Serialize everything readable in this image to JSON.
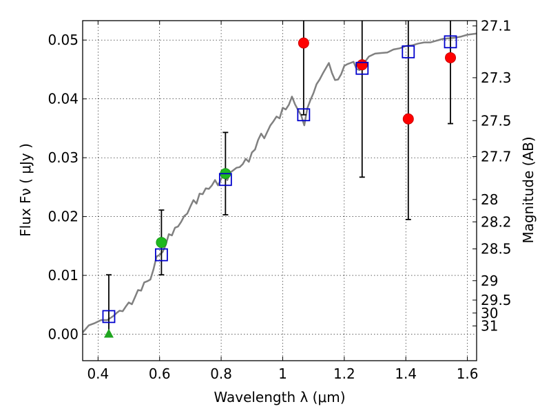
{
  "chart_data": {
    "type": "scatter",
    "xlabel": "Wavelength  λ (μm)",
    "ylabel": "Flux  Fν  ( μJy )",
    "y2label": "Magnitude (AB)",
    "xlim": [
      0.35,
      1.63
    ],
    "ylim": [
      -0.0045,
      0.0533
    ],
    "x_ticks": [
      0.4,
      0.6,
      0.8,
      1.0,
      1.2,
      1.4,
      1.6
    ],
    "x_tick_labels": [
      "0.4",
      "0.6",
      "0.8",
      "1",
      "1.2",
      "1.4",
      "1.6"
    ],
    "y_ticks": [
      0.0,
      0.01,
      0.02,
      0.03,
      0.04,
      0.05
    ],
    "y_tick_labels": [
      "0.00",
      "0.01",
      "0.02",
      "0.03",
      "0.04",
      "0.05"
    ],
    "y2_ticks": [
      {
        "label": "27.1",
        "flux": 0.0524
      },
      {
        "label": "27.3",
        "flux": 0.0436
      },
      {
        "label": "27.5",
        "flux": 0.0363
      },
      {
        "label": "27.7",
        "flux": 0.0302
      },
      {
        "label": "28",
        "flux": 0.0229
      },
      {
        "label": "28.2",
        "flux": 0.0191
      },
      {
        "label": "28.5",
        "flux": 0.0145
      },
      {
        "label": "29",
        "flux": 0.0091
      },
      {
        "label": "29.5",
        "flux": 0.0058
      },
      {
        "label": "30",
        "flux": 0.0036
      },
      {
        "label": "31",
        "flux": 0.0014
      }
    ],
    "grid": true,
    "colors": {
      "model": "#808080",
      "observed": "#ff0000",
      "detected": "#1fb81f",
      "upper_limit": "#1fa51f",
      "model_box": "#0000cc",
      "errorbar": "#000000"
    },
    "model_spectrum": {
      "name": "model SED",
      "x": [
        0.35,
        0.37,
        0.39,
        0.41,
        0.43,
        0.45,
        0.46,
        0.47,
        0.48,
        0.49,
        0.5,
        0.51,
        0.52,
        0.53,
        0.54,
        0.55,
        0.56,
        0.57,
        0.58,
        0.59,
        0.6,
        0.61,
        0.62,
        0.63,
        0.64,
        0.65,
        0.66,
        0.67,
        0.68,
        0.69,
        0.7,
        0.71,
        0.72,
        0.73,
        0.74,
        0.75,
        0.76,
        0.77,
        0.78,
        0.79,
        0.8,
        0.81,
        0.82,
        0.83,
        0.84,
        0.85,
        0.86,
        0.87,
        0.88,
        0.89,
        0.9,
        0.91,
        0.92,
        0.93,
        0.94,
        0.95,
        0.96,
        0.97,
        0.98,
        0.99,
        1.0,
        1.01,
        1.02,
        1.03,
        1.04,
        1.05,
        1.06,
        1.07,
        1.08,
        1.09,
        1.1,
        1.11,
        1.12,
        1.13,
        1.14,
        1.15,
        1.16,
        1.17,
        1.18,
        1.19,
        1.2,
        1.21,
        1.22,
        1.23,
        1.24,
        1.25,
        1.26,
        1.28,
        1.3,
        1.32,
        1.34,
        1.36,
        1.38,
        1.4,
        1.42,
        1.44,
        1.46,
        1.48,
        1.5,
        1.52,
        1.54,
        1.56,
        1.58,
        1.6,
        1.63
      ],
      "values": [
        0.0003,
        0.0015,
        0.0019,
        0.0024,
        0.0024,
        0.0031,
        0.0036,
        0.004,
        0.0039,
        0.0047,
        0.0054,
        0.0051,
        0.0063,
        0.0075,
        0.0074,
        0.0088,
        0.009,
        0.0093,
        0.011,
        0.0132,
        0.0135,
        0.014,
        0.0152,
        0.017,
        0.0168,
        0.0181,
        0.0183,
        0.0191,
        0.0201,
        0.0205,
        0.0217,
        0.0228,
        0.0222,
        0.0239,
        0.0238,
        0.0248,
        0.0247,
        0.0253,
        0.0262,
        0.0253,
        0.0264,
        0.0273,
        0.0262,
        0.0275,
        0.0279,
        0.0283,
        0.0284,
        0.0289,
        0.0298,
        0.0293,
        0.0309,
        0.0314,
        0.033,
        0.0341,
        0.0333,
        0.0344,
        0.0355,
        0.0362,
        0.037,
        0.0367,
        0.0385,
        0.0382,
        0.039,
        0.0404,
        0.0391,
        0.0381,
        0.0372,
        0.0355,
        0.0384,
        0.0398,
        0.041,
        0.0425,
        0.0433,
        0.0443,
        0.0452,
        0.0461,
        0.0444,
        0.0432,
        0.0433,
        0.0442,
        0.0456,
        0.0459,
        0.0461,
        0.0463,
        0.0451,
        0.0449,
        0.0458,
        0.0472,
        0.0477,
        0.0478,
        0.0479,
        0.0484,
        0.0486,
        0.049,
        0.0491,
        0.0494,
        0.0496,
        0.0496,
        0.0499,
        0.0502,
        0.0503,
        0.0504,
        0.0506,
        0.0509,
        0.0511
      ]
    },
    "series": [
      {
        "name": "observed photometry (red circles)",
        "marker": "circle",
        "color": "red",
        "points": [
          {
            "x": 1.068,
            "y": 0.0495,
            "yerr_low": null,
            "yerr_high": null
          },
          {
            "x": 1.258,
            "y": 0.0458,
            "yerr_low": 0.0267,
            "yerr_high": 0.0537
          },
          {
            "x": 1.408,
            "y": 0.0366,
            "yerr_low": 0.0195,
            "yerr_high": 0.0537
          },
          {
            "x": 1.545,
            "y": 0.047,
            "yerr_low": 0.0358,
            "yerr_high": 0.0537
          }
        ]
      },
      {
        "name": "detections (green circles)",
        "marker": "circle",
        "color": "green",
        "points": [
          {
            "x": 0.606,
            "y": 0.0156
          },
          {
            "x": 0.814,
            "y": 0.0273
          }
        ]
      },
      {
        "name": "non-detection (green triangle)",
        "marker": "triangle",
        "color": "green",
        "points": [
          {
            "x": 0.435,
            "y": 0.0
          }
        ]
      },
      {
        "name": "model photometry (blue squares)",
        "marker": "square",
        "color": "blue",
        "points": [
          {
            "x": 0.435,
            "y": 0.003
          },
          {
            "x": 0.606,
            "y": 0.0135
          },
          {
            "x": 0.814,
            "y": 0.0263
          },
          {
            "x": 1.068,
            "y": 0.0373
          },
          {
            "x": 1.258,
            "y": 0.0452
          },
          {
            "x": 1.408,
            "y": 0.048
          },
          {
            "x": 1.545,
            "y": 0.0497
          }
        ]
      }
    ],
    "errorbars": [
      {
        "x": 0.435,
        "low": 0.0,
        "high": 0.0101
      },
      {
        "x": 0.606,
        "low": 0.0101,
        "high": 0.0211
      },
      {
        "x": 0.814,
        "low": 0.0203,
        "high": 0.0343
      },
      {
        "x": 1.068,
        "low": 0.0373,
        "high": 0.0537
      },
      {
        "x": 1.258,
        "low": 0.0267,
        "high": 0.0537
      },
      {
        "x": 1.408,
        "low": 0.0195,
        "high": 0.0537
      },
      {
        "x": 1.545,
        "low": 0.0358,
        "high": 0.0537
      }
    ]
  }
}
